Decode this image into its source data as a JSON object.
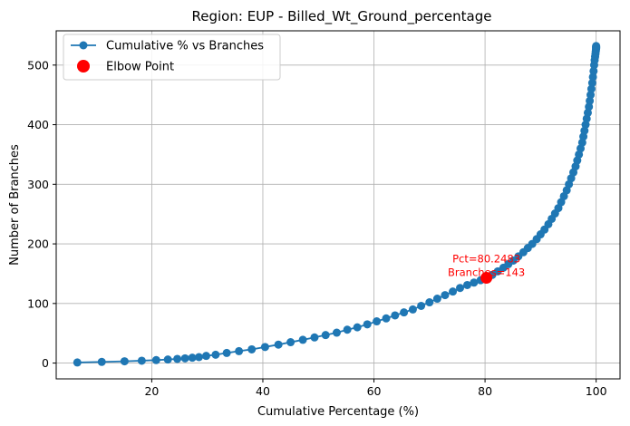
{
  "chart_data": {
    "type": "line",
    "title": "Region: EUP - Billed_Wt_Ground_percentage",
    "xlabel": "Cumulative Percentage (%)",
    "ylabel": "Number of Branches",
    "xlim": [
      2.8,
      104.3
    ],
    "ylim": [
      -26.5,
      557.5
    ],
    "xticks": [
      20,
      40,
      60,
      80,
      100
    ],
    "yticks": [
      0,
      100,
      200,
      300,
      400,
      500
    ],
    "grid": true,
    "legend_position": "top-left",
    "series": [
      {
        "name": "Cumulative % vs Branches",
        "color": "#1f77b4",
        "marker": "circle",
        "x": [
          6.6,
          11.0,
          15.1,
          18.2,
          20.8,
          22.9,
          24.6,
          26.0,
          27.3,
          28.5,
          29.8,
          31.5,
          33.5,
          35.7,
          38.0,
          40.4,
          42.8,
          45.0,
          47.2,
          49.3,
          51.3,
          53.3,
          55.2,
          57.0,
          58.8,
          60.5,
          62.2,
          63.8,
          65.4,
          67.0,
          68.5,
          70.0,
          71.4,
          72.8,
          74.2,
          75.5,
          76.8,
          78.0,
          79.2,
          80.25,
          81.3,
          82.3,
          83.3,
          84.2,
          85.1,
          86.0,
          86.9,
          87.7,
          88.5,
          89.3,
          90.0,
          90.7,
          91.4,
          92.0,
          92.6,
          93.2,
          93.7,
          94.2,
          94.7,
          95.1,
          95.5,
          95.9,
          96.3,
          96.6,
          96.9,
          97.2,
          97.5,
          97.7,
          97.9,
          98.1,
          98.3,
          98.5,
          98.7,
          98.85,
          99.0,
          99.15,
          99.3,
          99.42,
          99.54,
          99.64,
          99.73,
          99.81,
          99.88,
          99.93,
          99.97,
          100.0,
          100.0,
          100.0,
          100.0,
          100.0
        ],
        "y": [
          1,
          2,
          3,
          4,
          5,
          6,
          7,
          8,
          9,
          10,
          12,
          14,
          17,
          20,
          23,
          27,
          31,
          35,
          39,
          43,
          47,
          51,
          56,
          60,
          65,
          70,
          75,
          80,
          85,
          90,
          96,
          102,
          108,
          114,
          120,
          126,
          131,
          135,
          139,
          143,
          148,
          154,
          160,
          166,
          172,
          179,
          186,
          193,
          200,
          208,
          216,
          224,
          233,
          242,
          251,
          260,
          270,
          280,
          290,
          300,
          310,
          320,
          330,
          340,
          350,
          360,
          370,
          380,
          390,
          400,
          410,
          420,
          430,
          440,
          450,
          460,
          470,
          480,
          490,
          500,
          508,
          514,
          519,
          523,
          526,
          528,
          529,
          530,
          531,
          532
        ]
      }
    ],
    "elbow": {
      "name": "Elbow Point",
      "color": "#ff0000",
      "x": 80.2483,
      "y": 143,
      "label_line1": "Pct=80.2483",
      "label_line2": "Branches=143"
    }
  }
}
